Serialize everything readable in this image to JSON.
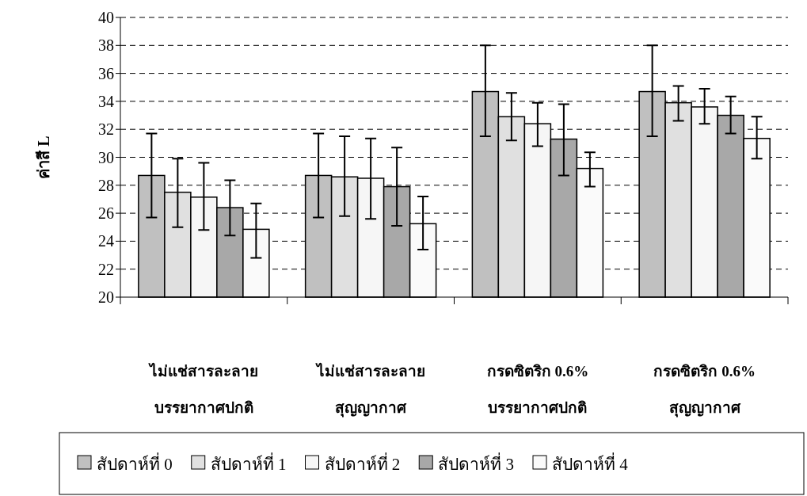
{
  "chart_data": {
    "type": "bar",
    "ylabel": "ค่าสี L",
    "categories": [
      "ไม่แช่สารละลาย\nบรรยากาศปกติ",
      "ไม่แช่สารละลาย\nสุญญากาศ",
      "กรดซิตริก 0.6%\nบรรยากาศปกติ",
      "กรดซิตริก 0.6%\nสุญญากาศ"
    ],
    "series": [
      {
        "name": "สัปดาห์ที่ 0",
        "color": "#c0c0c0",
        "values": [
          28.7,
          28.7,
          34.7,
          34.7
        ],
        "errors": [
          [
            25.7,
            31.7
          ],
          [
            25.7,
            31.7
          ],
          [
            31.5,
            38.0
          ],
          [
            31.5,
            38.0
          ]
        ]
      },
      {
        "name": "สัปดาห์ที่ 1",
        "color": "#e0e0e0",
        "values": [
          27.5,
          28.6,
          32.9,
          33.9
        ],
        "errors": [
          [
            25.0,
            29.9
          ],
          [
            25.8,
            31.5
          ],
          [
            31.2,
            34.6
          ],
          [
            32.6,
            35.1
          ]
        ]
      },
      {
        "name": "สัปดาห์ที่ 2",
        "color": "#f6f6f6",
        "values": [
          27.15,
          28.5,
          32.4,
          33.6
        ],
        "errors": [
          [
            24.8,
            29.6
          ],
          [
            25.6,
            31.35
          ],
          [
            30.8,
            33.9
          ],
          [
            32.4,
            34.9
          ]
        ]
      },
      {
        "name": "สัปดาห์ที่ 3",
        "color": "#a8a8a8",
        "values": [
          26.4,
          27.9,
          31.3,
          33.0
        ],
        "errors": [
          [
            24.4,
            28.35
          ],
          [
            25.1,
            30.7
          ],
          [
            28.7,
            33.8
          ],
          [
            31.7,
            34.35
          ]
        ]
      },
      {
        "name": "สัปดาห์ที่ 4",
        "color": "#fafafa",
        "values": [
          24.85,
          25.25,
          29.2,
          31.35
        ],
        "errors": [
          [
            22.8,
            26.7
          ],
          [
            23.4,
            27.2
          ],
          [
            27.9,
            30.35
          ],
          [
            29.9,
            32.9
          ]
        ]
      }
    ],
    "ylim": [
      20,
      40
    ],
    "yticks": [
      20,
      22,
      24,
      26,
      28,
      30,
      32,
      34,
      36,
      38,
      40
    ],
    "grid": "y",
    "legend": "bottom"
  }
}
